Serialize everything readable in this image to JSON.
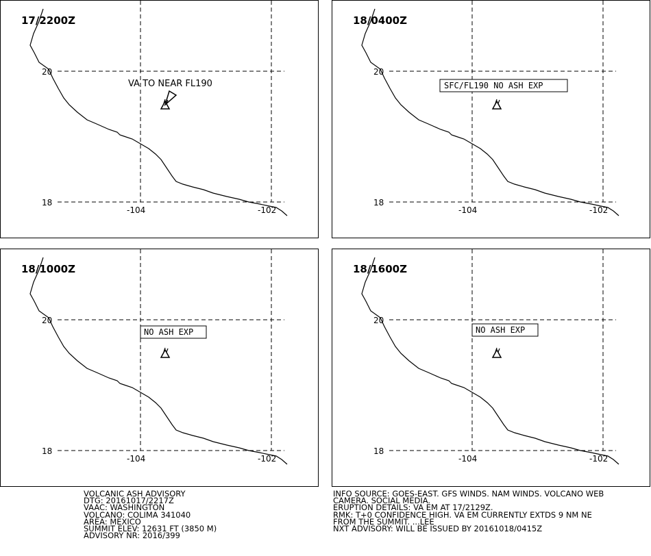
{
  "lat_labels": [
    "20",
    "18"
  ],
  "lon_labels": [
    "-104",
    "-102"
  ],
  "panels": [
    {
      "time": "17/2200Z",
      "ash_label": "VA TO NEAR FL190",
      "boxed": false,
      "plume": true
    },
    {
      "time": "18/0400Z",
      "ash_label": "SFC/FL190 NO ASH EXP",
      "boxed": true,
      "plume": false
    },
    {
      "time": "18/1000Z",
      "ash_label": "NO ASH EXP",
      "boxed": true,
      "plume": false
    },
    {
      "time": "18/1600Z",
      "ash_label": "NO ASH EXP",
      "boxed": true,
      "plume": false
    }
  ],
  "advisory_left": [
    "VOLCANIC ASH ADVISORY",
    "DTG: 20161017/2217Z",
    "VAAC: WASHINGTON",
    "VOLCANO: COLIMA 341040",
    "AREA: MEXICO",
    "SUMMIT ELEV: 12631 FT (3850 M)",
    "ADVISORY NR: 2016/399"
  ],
  "advisory_right": [
    "INFO SOURCE: GOES-EAST. GFS WINDS. NAM WINDS. VOLCANO WEB",
    "CAMERA. SOCIAL MEDIA.",
    "ERUPTION DETAILS: VA EM AT 17/2129Z.",
    "RMK: T+0 CONFIDENCE HIGH. VA EM CURRENTLY EXTDS 9 NM NE",
    "FROM THE SUMMIT. ...LEE",
    "NXT ADVISORY: WILL BE ISSUED BY 20161018/0415Z"
  ],
  "icons": {
    "volcano": "volcano-icon",
    "plume": "ash-plume-icon"
  }
}
